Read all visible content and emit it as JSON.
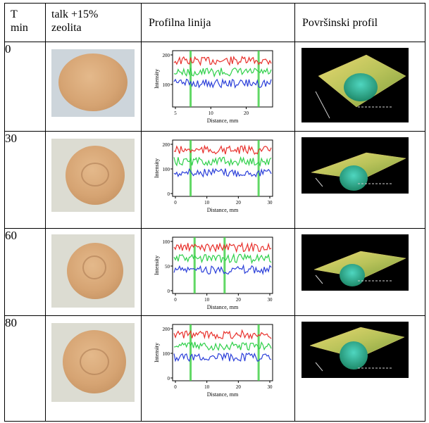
{
  "table": {
    "headers": {
      "time": "T\nmin",
      "sample": "talk +15%\nzeolita",
      "profile_line": "Profilna linija",
      "surface_profile": "Površinski profil"
    },
    "rows": [
      {
        "t": "0",
        "ticks_x": [
          "5",
          "10",
          "20"
        ],
        "ticks_y": [
          "200",
          "100"
        ],
        "ylabel": "Intensity",
        "xlabel": "Distance, mm"
      },
      {
        "t": "30",
        "ticks_x": [
          "0",
          "10",
          "20",
          "30"
        ],
        "ticks_y": [
          "200",
          "100",
          "0"
        ],
        "ylabel": "Intensity",
        "xlabel": "Distance, mm"
      },
      {
        "t": "60",
        "ticks_x": [
          "0",
          "10",
          "20",
          "30"
        ],
        "ticks_y": [
          "100",
          "50",
          "0"
        ],
        "ylabel": "Intensity",
        "xlabel": "Distance, mm"
      },
      {
        "t": "80",
        "ticks_x": [
          "0",
          "10",
          "20",
          "30"
        ],
        "ticks_y": [
          "200",
          "100",
          "0"
        ],
        "ylabel": "Intensity",
        "xlabel": "Distance, mm"
      }
    ]
  },
  "colors": {
    "red": "#e8312c",
    "green": "#2fd04a",
    "blue": "#2b3fd9",
    "marker": "#45d14a",
    "surface_bg": "#000000"
  }
}
